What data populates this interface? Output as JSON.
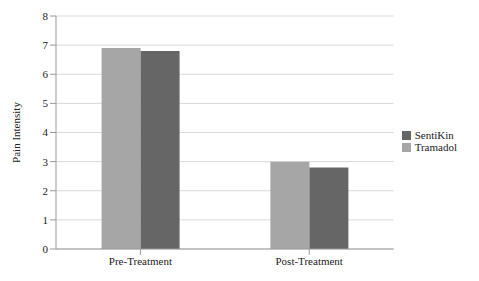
{
  "chart_data": {
    "type": "bar",
    "y_label": "Pain Intensity",
    "categories": [
      "Pre-Treatment",
      "Post-Treatment"
    ],
    "series": [
      {
        "name": "Tramadol",
        "color": "#a6a6a6",
        "values": [
          6.9,
          3.0
        ]
      },
      {
        "name": "SentiKin",
        "color": "#666666",
        "values": [
          6.8,
          2.8
        ]
      }
    ],
    "ylim": [
      0,
      8
    ],
    "yticks": [
      0,
      1,
      2,
      3,
      4,
      5,
      6,
      7,
      8
    ],
    "grid": true,
    "legend": "right"
  }
}
